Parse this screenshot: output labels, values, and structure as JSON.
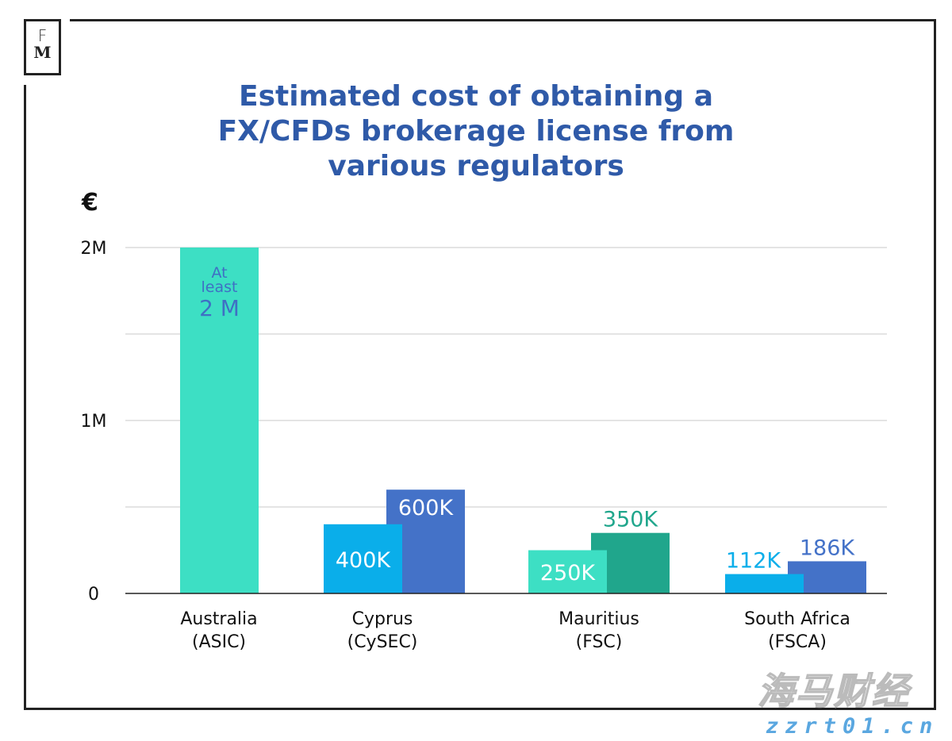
{
  "logo": {
    "top": "F",
    "bottom": "M"
  },
  "watermark": {
    "text": "海马财经",
    "url": "zzrt01.cn"
  },
  "chart_data": {
    "type": "bar",
    "title": "Estimated cost of obtaining a FX/CFDs brokerage license from various regulators",
    "title_lines": [
      "Estimated cost of obtaining a",
      "FX/CFDs brokerage license from",
      "various regulators"
    ],
    "ylabel": "€",
    "ylim": [
      0,
      2000000
    ],
    "yticks": [
      {
        "value": 0,
        "label": "0"
      },
      {
        "value": 1000000,
        "label": "1M"
      },
      {
        "value": 2000000,
        "label": "2M"
      }
    ],
    "gridlines_every": 500000,
    "grid": true,
    "categories": [
      {
        "label_line1": "Australia",
        "label_line2": "(ASIC)"
      },
      {
        "label_line1": "Cyprus",
        "label_line2": "(CySEC)"
      },
      {
        "label_line1": "Mauritius",
        "label_line2": "(FSC)"
      },
      {
        "label_line1": "South Africa",
        "label_line2": "(FSCA)"
      }
    ],
    "bars": [
      {
        "category": 0,
        "slot": "single",
        "value": 2000000,
        "label_lines": [
          "At",
          "least",
          "2 M"
        ],
        "color": "#3ddfc4",
        "label_color": "#3f6fc4",
        "label_pos": "inside-top"
      },
      {
        "category": 1,
        "slot": "left",
        "value": 400000,
        "label": "400K",
        "color": "#0aaeea",
        "label_color": "#ffffff",
        "label_pos": "inside"
      },
      {
        "category": 1,
        "slot": "right",
        "value": 600000,
        "label": "600K",
        "color": "#4472c8",
        "label_color": "#ffffff",
        "label_pos": "inside"
      },
      {
        "category": 2,
        "slot": "left",
        "value": 250000,
        "label": "250K",
        "color": "#3ddfc4",
        "label_color": "#ffffff",
        "label_pos": "inside"
      },
      {
        "category": 2,
        "slot": "right",
        "value": 350000,
        "label": "350K",
        "color": "#20a68c",
        "label_color": "#20a68c",
        "label_pos": "above"
      },
      {
        "category": 3,
        "slot": "left",
        "value": 112000,
        "label": "112K",
        "color": "#0aaeea",
        "label_color": "#0aaeea",
        "label_pos": "above"
      },
      {
        "category": 3,
        "slot": "right",
        "value": 186000,
        "label": "186K",
        "color": "#4472c8",
        "label_color": "#4472c8",
        "label_pos": "above"
      }
    ]
  }
}
